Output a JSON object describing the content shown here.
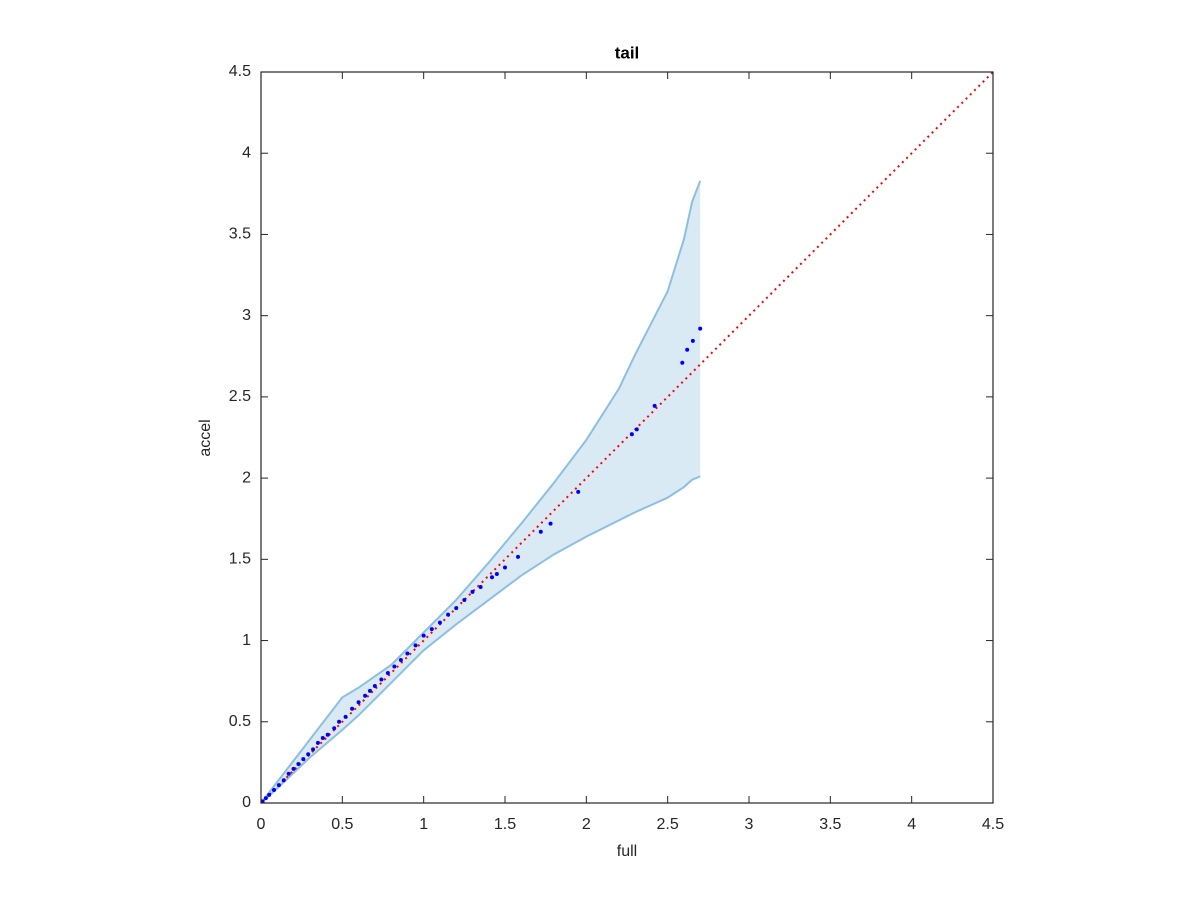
{
  "chart_data": {
    "type": "scatter",
    "title": "tail",
    "xlabel": "full",
    "ylabel": "accel",
    "xlim": [
      0,
      4.5
    ],
    "ylim": [
      0,
      4.5
    ],
    "xticks": [
      0,
      0.5,
      1,
      1.5,
      2,
      2.5,
      3,
      3.5,
      4,
      4.5
    ],
    "yticks": [
      0,
      0.5,
      1,
      1.5,
      2,
      2.5,
      3,
      3.5,
      4,
      4.5
    ],
    "color": "#0000ff",
    "x": [
      0.01,
      0.03,
      0.05,
      0.08,
      0.11,
      0.14,
      0.17,
      0.2,
      0.23,
      0.26,
      0.29,
      0.32,
      0.35,
      0.38,
      0.41,
      0.45,
      0.48,
      0.52,
      0.56,
      0.6,
      0.64,
      0.67,
      0.7,
      0.74,
      0.78,
      0.82,
      0.86,
      0.9,
      0.95,
      1.0,
      1.05,
      1.1,
      1.15,
      1.2,
      1.25,
      1.3,
      1.35,
      1.42,
      1.45,
      1.5,
      1.58,
      1.72,
      1.78,
      1.95,
      2.28,
      2.31,
      2.42,
      2.59,
      2.62,
      2.655,
      2.7
    ],
    "values": [
      0.01,
      0.03,
      0.05,
      0.08,
      0.11,
      0.14,
      0.18,
      0.21,
      0.24,
      0.27,
      0.3,
      0.33,
      0.37,
      0.4,
      0.42,
      0.46,
      0.5,
      0.53,
      0.58,
      0.62,
      0.66,
      0.69,
      0.72,
      0.76,
      0.8,
      0.84,
      0.88,
      0.92,
      0.97,
      1.03,
      1.07,
      1.11,
      1.16,
      1.2,
      1.25,
      1.3,
      1.33,
      1.39,
      1.41,
      1.45,
      1.515,
      1.67,
      1.72,
      1.915,
      2.27,
      2.3,
      2.445,
      2.71,
      2.79,
      2.845,
      2.92
    ],
    "band": {
      "color": "#8cbfe0",
      "x": [
        0,
        0.1,
        0.3,
        0.5,
        0.6,
        0.8,
        1.0,
        1.2,
        1.4,
        1.6,
        1.8,
        2.0,
        2.2,
        2.3,
        2.5,
        2.6,
        2.65,
        2.7
      ],
      "upper": [
        0,
        0.13,
        0.39,
        0.65,
        0.71,
        0.85,
        1.05,
        1.25,
        1.48,
        1.72,
        1.97,
        2.235,
        2.55,
        2.76,
        3.15,
        3.47,
        3.7,
        3.83
      ],
      "lower": [
        0,
        0.09,
        0.28,
        0.45,
        0.54,
        0.74,
        0.94,
        1.1,
        1.25,
        1.4,
        1.53,
        1.64,
        1.74,
        1.79,
        1.88,
        1.945,
        1.99,
        2.01
      ]
    },
    "reference_line": {
      "x": [
        0,
        4.5
      ],
      "y": [
        0,
        4.5
      ],
      "color": "#ff0000"
    }
  }
}
